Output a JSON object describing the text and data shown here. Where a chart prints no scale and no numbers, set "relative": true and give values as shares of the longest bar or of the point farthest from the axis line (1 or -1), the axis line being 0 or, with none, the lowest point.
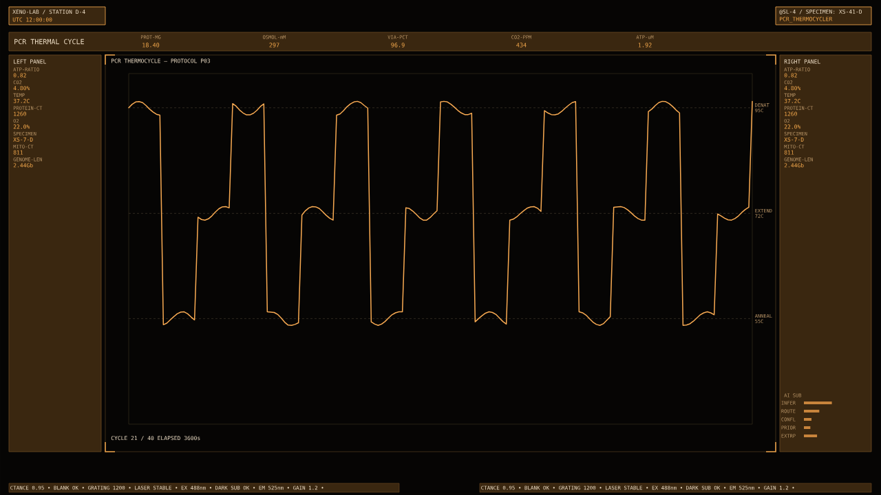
{
  "chart_data": [
    {
      "type": "other",
      "title": "XENO-LAB / STATION D-4",
      "annotations": [
        "UTC 12:00:00"
      ]
    },
    {
      "type": "other",
      "title": "@SL-4 / SPECIMEN: XS-41-D",
      "annotations": [
        "PCR_THERMOCYCLER"
      ]
    },
    {
      "type": "other",
      "title": "PCR THERMAL CYCLE",
      "annotations": [
        "PROT-MG",
        "18.40",
        "OSMOL-mM",
        "297",
        "VIA-PCT",
        "96.9",
        "CO2-PPM",
        "434",
        "ATP-uM",
        "1.92"
      ]
    },
    {
      "type": "other",
      "title": "LEFT PANEL",
      "annotations": [
        "ATP-RATIO",
        "0.82",
        "CO2",
        "4.80%",
        "TEMP",
        "37.2C",
        "PROTEIN-CT",
        "1260",
        "O2",
        "22.0%",
        "SPECIMEN",
        "XS-7-D",
        "MITO-CT",
        "811",
        "GENOME-LEN",
        "2.44Gb"
      ]
    },
    {
      "type": "line",
      "title": "PCR THERMOCYCLE — PROTOCOL P03",
      "annotations": [
        "CYCLE 21 / 40   ELAPSED   3600s"
      ],
      "relative": true,
      "color": "#f8aa52",
      "categories": [
        null,
        null,
        null,
        null,
        null,
        null,
        null,
        null,
        null,
        null,
        null,
        null,
        null,
        null,
        null,
        null,
        null,
        null,
        null,
        null,
        null,
        null,
        null,
        null,
        null,
        null,
        null,
        null,
        null,
        null,
        null,
        null,
        null,
        null,
        null,
        null,
        null,
        null,
        null,
        null,
        null,
        null,
        null,
        null,
        null,
        null,
        null,
        null,
        null,
        null,
        null,
        null,
        null,
        null,
        null,
        null,
        null,
        null,
        null,
        null,
        null,
        null,
        null,
        null,
        null,
        null,
        null,
        null,
        null,
        null,
        null,
        null,
        null,
        null,
        null,
        null,
        null,
        null,
        null,
        null,
        null,
        null,
        null,
        null,
        null,
        null,
        null,
        null,
        null,
        null,
        null,
        null,
        null,
        null,
        null,
        null,
        null,
        null,
        null,
        null,
        null,
        null,
        null,
        null,
        null,
        null,
        null,
        null,
        null,
        null,
        null,
        null,
        null,
        null,
        null,
        null,
        null,
        null,
        null,
        null,
        null,
        null,
        null,
        null,
        null,
        null,
        null,
        null,
        null,
        null,
        null,
        null,
        null,
        null,
        null,
        null,
        null,
        null,
        null,
        null,
        null,
        null,
        null,
        null,
        null,
        null,
        null,
        null,
        null,
        null,
        null,
        null,
        null,
        null,
        null,
        null,
        null,
        null,
        null,
        null,
        null,
        null,
        null,
        null,
        null,
        null,
        null,
        null,
        null,
        null,
        null,
        null,
        null,
        null,
        null,
        null,
        null,
        null,
        null,
        null,
        null
      ],
      "values": [
        0.98,
        0.991,
        0.998,
        0.999,
        0.996,
        0.987,
        0.976,
        0.967,
        0.96,
        0.957,
        0.308,
        0.313,
        0.323,
        0.333,
        0.342,
        0.347,
        0.348,
        0.342,
        0.332,
        0.323,
        0.641,
        0.634,
        0.632,
        0.636,
        0.645,
        0.657,
        0.667,
        0.673,
        0.674,
        0.67,
        0.993,
        0.985,
        0.973,
        0.964,
        0.958,
        0.958,
        0.963,
        0.972,
        0.984,
        0.992,
        0.348,
        0.347,
        0.346,
        0.34,
        0.329,
        0.316,
        0.307,
        0.306,
        0.309,
        0.314,
        0.648,
        0.661,
        0.67,
        0.674,
        0.673,
        0.668,
        0.658,
        0.647,
        0.638,
        0.632,
        0.957,
        0.961,
        0.971,
        0.983,
        0.992,
        0.998,
        1.0,
        0.996,
        0.987,
        0.979,
        0.317,
        0.31,
        0.306,
        0.31,
        0.318,
        0.329,
        0.339,
        0.345,
        0.348,
        0.348,
        0.67,
        0.668,
        0.66,
        0.65,
        0.639,
        0.632,
        0.632,
        0.64,
        0.651,
        0.661,
        0.998,
        1.0,
        0.998,
        0.991,
        0.982,
        0.972,
        0.964,
        0.959,
        0.959,
        0.963,
        0.317,
        0.327,
        0.336,
        0.344,
        0.348,
        0.346,
        0.34,
        0.329,
        0.318,
        0.31,
        0.632,
        0.635,
        0.642,
        0.652,
        0.661,
        0.669,
        0.673,
        0.674,
        0.669,
        0.659,
        0.971,
        0.964,
        0.959,
        0.958,
        0.961,
        0.969,
        0.979,
        0.988,
        0.996,
        0.999,
        0.348,
        0.345,
        0.338,
        0.327,
        0.316,
        0.309,
        0.306,
        0.311,
        0.322,
        0.333,
        0.672,
        0.673,
        0.674,
        0.671,
        0.664,
        0.655,
        0.645,
        0.637,
        0.632,
        0.632,
        0.968,
        0.976,
        0.987,
        0.996,
        1.0,
        0.999,
        0.993,
        0.984,
        0.973,
        0.964,
        0.306,
        0.307,
        0.311,
        0.319,
        0.329,
        0.339,
        0.345,
        0.348,
        0.345,
        0.339,
        0.651,
        0.645,
        0.638,
        0.633,
        0.632,
        0.637,
        0.645,
        0.656,
        0.665,
        0.672,
        1.0
      ],
      "ref_lines": [
        {
          "axis": "y",
          "value": 0.98,
          "label": "DENAT 95C",
          "color": "#4a4232",
          "line_style": "dashed"
        },
        {
          "axis": "y",
          "value": 0.653,
          "label": "EXTEND 72C",
          "color": "#4a4232",
          "line_style": "dashed"
        },
        {
          "axis": "y",
          "value": 0.327,
          "label": "ANNEAL 55C",
          "color": "#4a4232",
          "line_style": "dashed"
        }
      ]
    },
    {
      "type": "other",
      "title": "RIGHT PANEL",
      "annotations": [
        "ATP-RATIO",
        "0.82",
        "CO2",
        "4.80%",
        "TEMP",
        "37.2C",
        "PROTEIN-CT",
        "1260",
        "O2",
        "22.0%",
        "SPECIMEN",
        "XS-7-D",
        "MITO-CT",
        "811",
        "GENOME-LEN",
        "2.44Gb"
      ]
    },
    {
      "type": "bar",
      "orientation": "horizontal",
      "relative": true,
      "title": "AI SUB",
      "categories": [
        "INFER",
        "ROUTE",
        "CONFL",
        "PRIOR",
        "EXTRP"
      ],
      "values": [
        1.0,
        0.55,
        0.27,
        0.23,
        0.47
      ],
      "color": "#c8843c"
    },
    {
      "type": "other",
      "annotations": [
        "CTANCE 0.95 • BLANK OK • GRATING 1200 • LASER STABLE • EX 488nm • DARK SUB OK • EM 525nm • GAIN 1.2 •",
        "CTANCE 0.95 • BLANK OK • GRATING 1200 • LASER STABLE • EX 488nm • DARK SUB OK • EM 525nm • GAIN 1.2 •"
      ]
    }
  ]
}
